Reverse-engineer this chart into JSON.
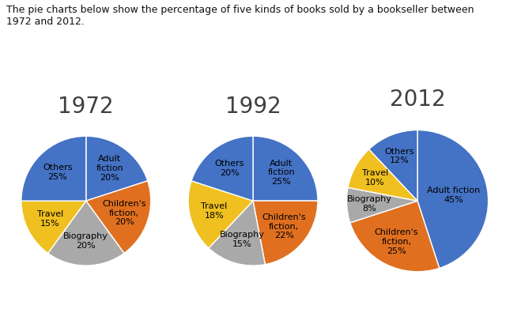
{
  "title": "The pie charts below show the percentage of five kinds of books sold by a bookseller between\n1972 and 2012.",
  "years": [
    "1972",
    "1992",
    "2012"
  ],
  "categories": [
    "Adult fiction",
    "Children's fiction",
    "Biography",
    "Travel",
    "Others"
  ],
  "data": {
    "1972": [
      20,
      20,
      20,
      15,
      25
    ],
    "1992": [
      25,
      22,
      15,
      18,
      20
    ],
    "2012": [
      45,
      25,
      8,
      10,
      12
    ]
  },
  "colors": [
    "#4472C4",
    "#E07020",
    "#A9A9A9",
    "#F0C020",
    "#4472C4"
  ],
  "background_color": "#FFFFFF",
  "title_fontsize": 9.0,
  "year_fontsize": 20,
  "label_fontsize": 8.0,
  "year_color": "#404040",
  "startangle": 90
}
